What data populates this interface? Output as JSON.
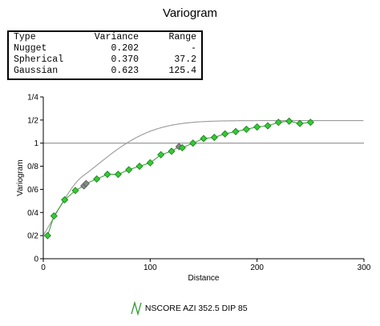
{
  "title": "Variogram",
  "table": {
    "headers": [
      "Type",
      "Variance",
      "Range"
    ],
    "rows": [
      [
        "Nugget",
        "0.202",
        "-"
      ],
      [
        "Spherical",
        "0.370",
        "37.2"
      ],
      [
        "Gaussian",
        "0.623",
        "125.4"
      ]
    ]
  },
  "legend": {
    "label": "NSCORE AZI 352.5 DIP 85",
    "icon": "zigzag-line-icon"
  },
  "colors": {
    "marker_fill": "#33cc33",
    "marker_edge": "#1a7a1a",
    "marker_selected": "#888888",
    "model_line": "#999999",
    "experimental_line": "#2f9a2f",
    "grid_sill": "#808080"
  },
  "chart_data": {
    "type": "line",
    "xlabel": "Distance",
    "ylabel": "Variogram",
    "xlim": [
      0,
      300
    ],
    "ylim": [
      0,
      1.4
    ],
    "x_ticks": [
      0,
      100,
      200,
      300
    ],
    "x_tick_labels": [
      "0",
      "100",
      "200",
      "300"
    ],
    "y_ticks": [
      0,
      0.2,
      0.4,
      0.6,
      0.8,
      1.0,
      1.2,
      1.4
    ],
    "y_tick_labels": [
      "0",
      "0/2",
      "0/4",
      "0/6",
      "0/8",
      "1",
      "1/2",
      "1/4"
    ],
    "sill": 1.0,
    "grid": "horizontal line at sill",
    "legend_position": "bottom-center",
    "series": [
      {
        "kind": "experimental",
        "points": [
          {
            "x": 4,
            "y": 0.2
          },
          {
            "x": 10,
            "y": 0.37
          },
          {
            "x": 20,
            "y": 0.51
          },
          {
            "x": 30,
            "y": 0.59
          },
          {
            "x": 38,
            "y": 0.63,
            "selected": true
          },
          {
            "x": 40,
            "y": 0.65,
            "selected": true
          },
          {
            "x": 50,
            "y": 0.69
          },
          {
            "x": 60,
            "y": 0.73
          },
          {
            "x": 70,
            "y": 0.73
          },
          {
            "x": 80,
            "y": 0.77
          },
          {
            "x": 90,
            "y": 0.8
          },
          {
            "x": 100,
            "y": 0.83
          },
          {
            "x": 110,
            "y": 0.9
          },
          {
            "x": 120,
            "y": 0.93
          },
          {
            "x": 127,
            "y": 0.97,
            "selected": true
          },
          {
            "x": 130,
            "y": 0.96
          },
          {
            "x": 140,
            "y": 1.0
          },
          {
            "x": 150,
            "y": 1.04
          },
          {
            "x": 160,
            "y": 1.05
          },
          {
            "x": 170,
            "y": 1.08
          },
          {
            "x": 180,
            "y": 1.1
          },
          {
            "x": 190,
            "y": 1.12
          },
          {
            "x": 200,
            "y": 1.14
          },
          {
            "x": 210,
            "y": 1.15
          },
          {
            "x": 220,
            "y": 1.18
          },
          {
            "x": 230,
            "y": 1.19
          },
          {
            "x": 240,
            "y": 1.17
          },
          {
            "x": 250,
            "y": 1.18
          }
        ]
      },
      {
        "kind": "model",
        "nugget": 0.202,
        "spherical": {
          "sill": 0.37,
          "range": 37.2
        },
        "gaussian": {
          "sill": 0.623,
          "range": 125.4
        }
      }
    ]
  }
}
